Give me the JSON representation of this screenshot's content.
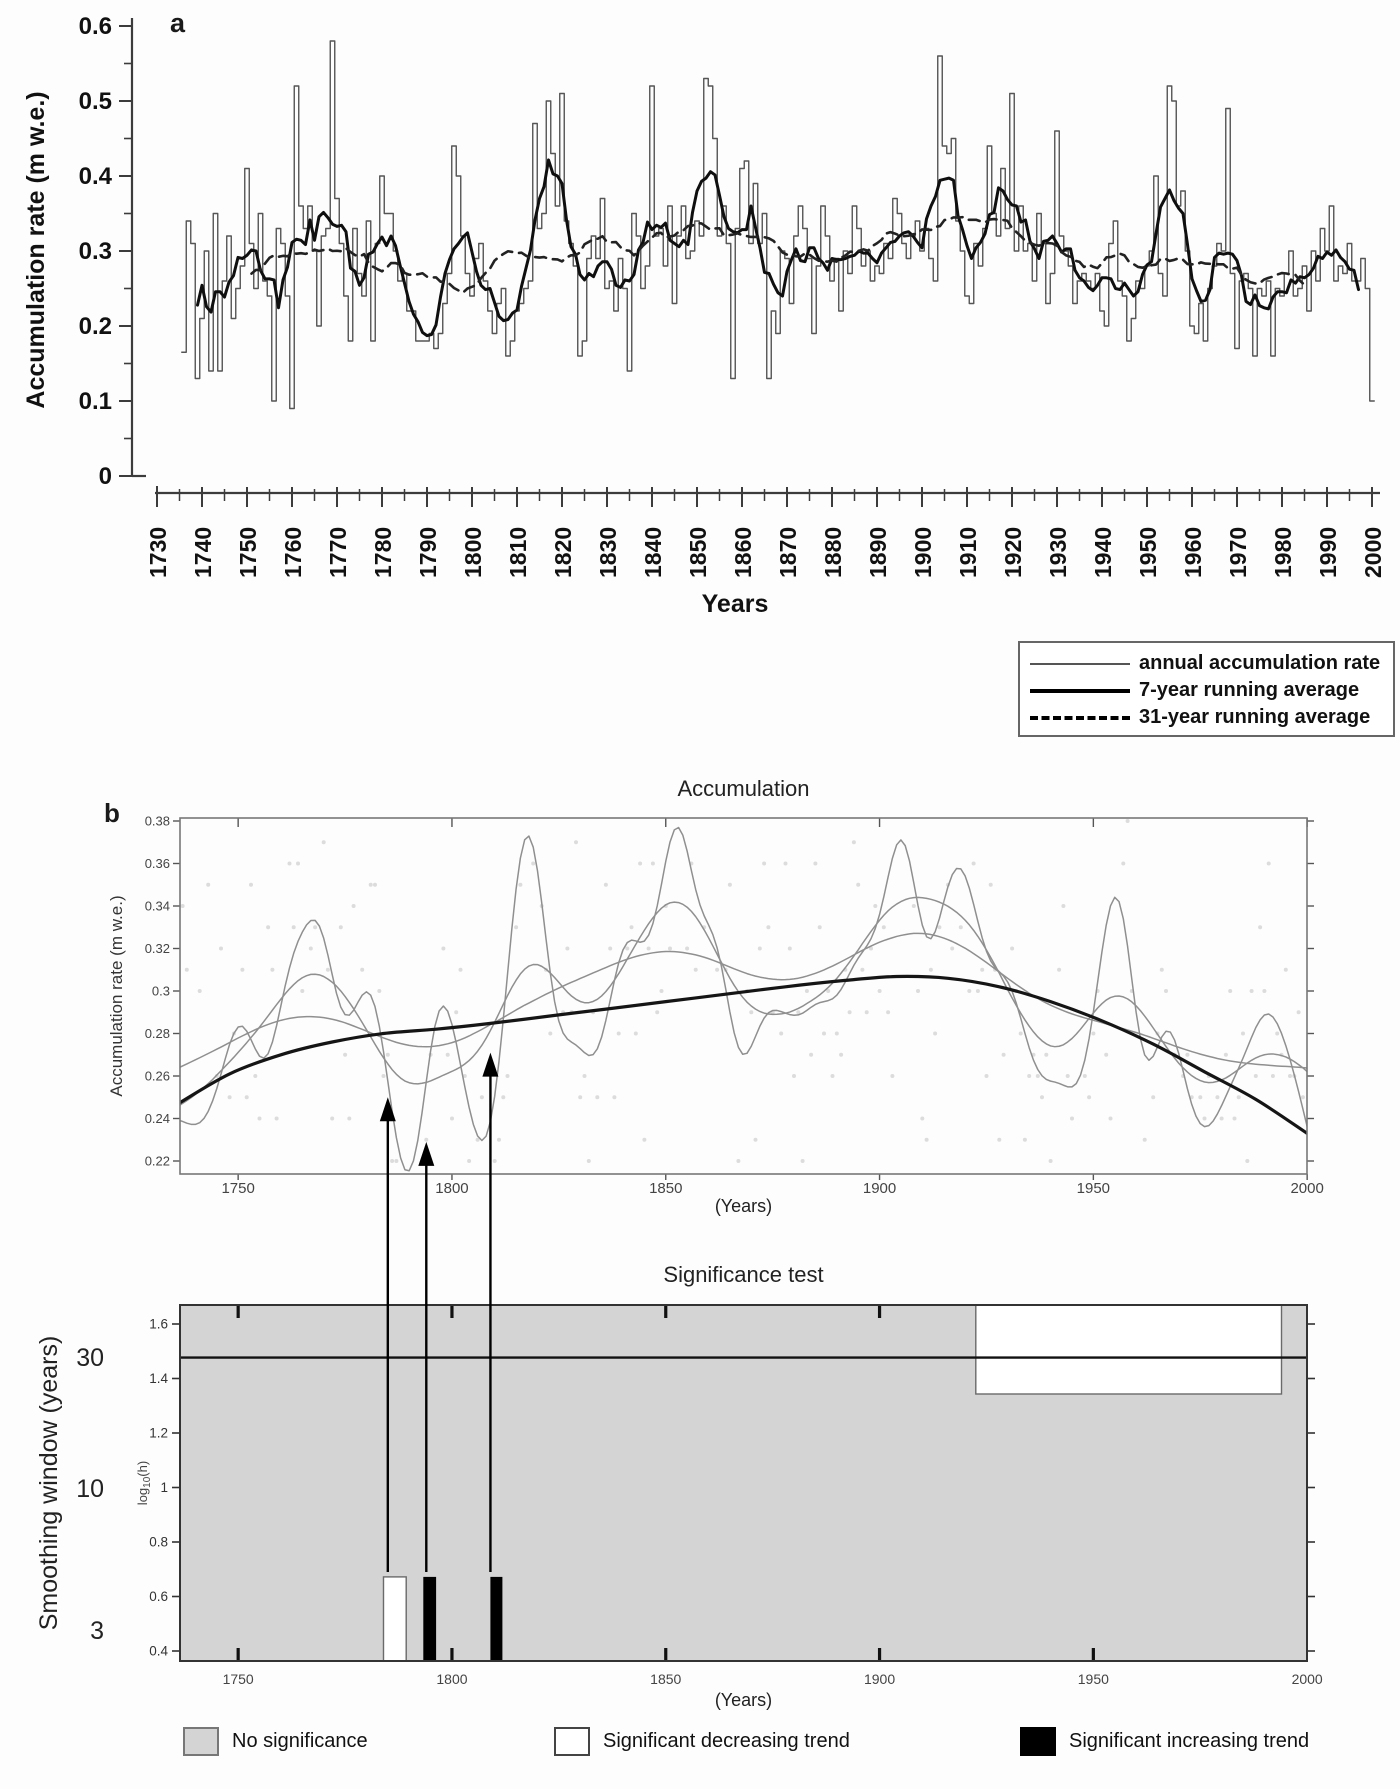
{
  "figure": {
    "panel_a": {
      "label": "a"
    },
    "panel_b": {
      "label": "b"
    }
  },
  "colors": {
    "background": "#fdfdfd",
    "annual_line": "#555555",
    "running7": "#0f0f0f",
    "running31": "#222222",
    "smooth_curves": "#8f8f8f",
    "trend_curve": "#151515",
    "scatter_dots": "#c7c7c7",
    "sig_background": "#d4d4d4",
    "sig_decreasing": "#ffffff",
    "sig_increasing": "#000000",
    "axis": "#3c3c3c"
  },
  "chart_data": [
    {
      "type": "line",
      "panel": "a",
      "ylabel": "Accumulation rate (m w.e.)",
      "xlabel": "Years",
      "ylim": [
        0,
        0.6
      ],
      "xlim": [
        1730,
        2005
      ],
      "ytick_labels": [
        "0",
        "0.1",
        "0.2",
        "0.3",
        "0.4",
        "0.5",
        "0.6"
      ],
      "xtick_labels": [
        "1730",
        "1740",
        "1750",
        "1760",
        "1770",
        "1780",
        "1790",
        "1800",
        "1810",
        "1820",
        "1830",
        "1840",
        "1850",
        "1860",
        "1870",
        "1880",
        "1890",
        "1900",
        "1910",
        "1920",
        "1930",
        "1940",
        "1950",
        "1960",
        "1970",
        "1980",
        "1990",
        "2000"
      ],
      "legend": [
        "annual accumulation rate",
        "7-year running average",
        "31-year running average"
      ],
      "running_mean_windows": [
        7,
        31
      ],
      "start_year": 1736,
      "annual": [
        0.165,
        0.34,
        0.31,
        0.13,
        0.21,
        0.3,
        0.14,
        0.35,
        0.14,
        0.26,
        0.32,
        0.21,
        0.25,
        0.28,
        0.41,
        0.31,
        0.25,
        0.35,
        0.26,
        0.24,
        0.1,
        0.33,
        0.31,
        0.24,
        0.09,
        0.52,
        0.36,
        0.33,
        0.36,
        0.3,
        0.2,
        0.32,
        0.33,
        0.58,
        0.37,
        0.31,
        0.24,
        0.18,
        0.33,
        0.27,
        0.24,
        0.34,
        0.18,
        0.31,
        0.4,
        0.35,
        0.35,
        0.3,
        0.26,
        0.27,
        0.22,
        0.22,
        0.18,
        0.18,
        0.18,
        0.19,
        0.17,
        0.19,
        0.23,
        0.27,
        0.44,
        0.4,
        0.32,
        0.27,
        0.24,
        0.29,
        0.31,
        0.26,
        0.22,
        0.19,
        0.23,
        0.25,
        0.16,
        0.18,
        0.22,
        0.23,
        0.25,
        0.26,
        0.47,
        0.33,
        0.35,
        0.5,
        0.43,
        0.36,
        0.51,
        0.34,
        0.31,
        0.28,
        0.16,
        0.18,
        0.29,
        0.32,
        0.29,
        0.37,
        0.25,
        0.26,
        0.22,
        0.29,
        0.25,
        0.14,
        0.35,
        0.32,
        0.25,
        0.28,
        0.52,
        0.32,
        0.33,
        0.28,
        0.36,
        0.23,
        0.32,
        0.36,
        0.29,
        0.3,
        0.34,
        0.32,
        0.53,
        0.52,
        0.45,
        0.32,
        0.36,
        0.31,
        0.13,
        0.33,
        0.41,
        0.42,
        0.31,
        0.39,
        0.31,
        0.35,
        0.13,
        0.22,
        0.19,
        0.3,
        0.29,
        0.23,
        0.32,
        0.36,
        0.33,
        0.29,
        0.19,
        0.28,
        0.36,
        0.32,
        0.26,
        0.29,
        0.22,
        0.3,
        0.27,
        0.36,
        0.33,
        0.28,
        0.3,
        0.26,
        0.28,
        0.27,
        0.31,
        0.29,
        0.37,
        0.35,
        0.31,
        0.29,
        0.32,
        0.34,
        0.3,
        0.33,
        0.29,
        0.26,
        0.56,
        0.44,
        0.43,
        0.45,
        0.34,
        0.3,
        0.24,
        0.23,
        0.31,
        0.28,
        0.33,
        0.44,
        0.35,
        0.32,
        0.41,
        0.33,
        0.51,
        0.3,
        0.36,
        0.3,
        0.31,
        0.26,
        0.35,
        0.31,
        0.23,
        0.27,
        0.46,
        0.32,
        0.3,
        0.28,
        0.23,
        0.26,
        0.27,
        0.26,
        0.25,
        0.27,
        0.22,
        0.2,
        0.31,
        0.34,
        0.26,
        0.24,
        0.18,
        0.21,
        0.26,
        0.25,
        0.28,
        0.3,
        0.4,
        0.27,
        0.24,
        0.52,
        0.5,
        0.36,
        0.38,
        0.3,
        0.2,
        0.19,
        0.23,
        0.18,
        0.25,
        0.28,
        0.31,
        0.3,
        0.49,
        0.27,
        0.17,
        0.26,
        0.27,
        0.25,
        0.16,
        0.25,
        0.24,
        0.26,
        0.16,
        0.25,
        0.24,
        0.27,
        0.3,
        0.24,
        0.25,
        0.28,
        0.22,
        0.3,
        0.26,
        0.33,
        0.3,
        0.36,
        0.26,
        0.28,
        0.27,
        0.31,
        0.26,
        0.26,
        0.29,
        0.25,
        0.1
      ]
    },
    {
      "type": "line",
      "panel": "b-top",
      "title": "Accumulation",
      "ylabel": "Accumulation rate (m w.e.)",
      "xlabel": "(Years)",
      "ylim": [
        0.21,
        0.383
      ],
      "xlim": [
        1736,
        2000
      ],
      "ytick_labels": [
        "0.38",
        "0.36",
        "0.34",
        "0.32",
        "0.3",
        "0.28",
        "0.26",
        "0.24",
        "0.22"
      ],
      "xtick_labels": [
        "1750",
        "1800",
        "1850",
        "1900",
        "1950",
        "2000"
      ],
      "smoothing_windows_years": [
        3.5,
        8,
        16
      ],
      "trend": [
        [
          1736,
          0.247
        ],
        [
          1748,
          0.261
        ],
        [
          1760,
          0.27
        ],
        [
          1772,
          0.276
        ],
        [
          1784,
          0.28
        ],
        [
          1796,
          0.282
        ],
        [
          1808,
          0.2845
        ],
        [
          1822,
          0.288
        ],
        [
          1836,
          0.2915
        ],
        [
          1850,
          0.295
        ],
        [
          1864,
          0.2985
        ],
        [
          1878,
          0.302
        ],
        [
          1892,
          0.305
        ],
        [
          1904,
          0.3068
        ],
        [
          1916,
          0.306
        ],
        [
          1928,
          0.302
        ],
        [
          1940,
          0.295
        ],
        [
          1952,
          0.286
        ],
        [
          1964,
          0.275
        ],
        [
          1976,
          0.262
        ],
        [
          1988,
          0.249
        ],
        [
          2000,
          0.233
        ]
      ],
      "arrows": [
        {
          "year": 1785,
          "tip_value": 0.25
        },
        {
          "year": 1794,
          "tip_value": 0.229
        },
        {
          "year": 1809,
          "tip_value": 0.271
        }
      ]
    },
    {
      "type": "significance-map",
      "panel": "b-bottom",
      "title": "Significance test",
      "xlabel": "(Years)",
      "outer_ylabel": "Smoothing window (years)",
      "outer_yticks": [
        {
          "label": "30",
          "log10": 1.477
        },
        {
          "label": "10",
          "log10": 1.0
        },
        {
          "label": "3",
          "log10": 0.477
        }
      ],
      "inner_ylabel_parts": [
        "log",
        "10",
        "(h)"
      ],
      "ytick_labels": [
        "1.6",
        "1.4",
        "1.2",
        "1",
        "0.8",
        "0.6",
        "0.4"
      ],
      "xtick_labels": [
        "1750",
        "1800",
        "1850",
        "1900",
        "1950",
        "2000"
      ],
      "ylim_log10": [
        0.363,
        1.67
      ],
      "xlim": [
        1736,
        2000
      ],
      "threshold_line_log10": 1.477,
      "regions": {
        "decreasing": [
          {
            "x1": 1784.0,
            "x2": 1789.3,
            "y1": 0.363,
            "y2": 0.672
          },
          {
            "x1": 1922.5,
            "x2": 1994.0,
            "y1": 1.343,
            "y2": 1.67
          }
        ],
        "increasing": [
          {
            "x1": 1793.3,
            "x2": 1796.3,
            "y1": 0.363,
            "y2": 0.672
          },
          {
            "x1": 1809.0,
            "x2": 1811.8,
            "y1": 0.363,
            "y2": 0.672
          }
        ]
      },
      "legend": [
        {
          "swatch": "gray",
          "label": "No significance"
        },
        {
          "swatch": "white",
          "label": "Significant decreasing trend"
        },
        {
          "swatch": "black",
          "label": "Significant increasing trend"
        }
      ]
    }
  ]
}
